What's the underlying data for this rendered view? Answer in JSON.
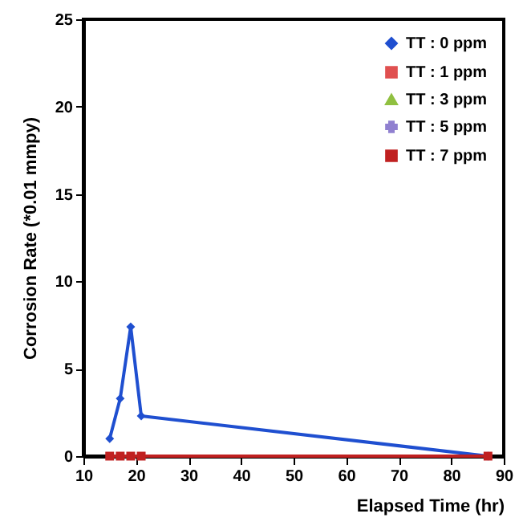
{
  "chart_data": {
    "type": "line",
    "xlabel": "Elapsed Time  (hr)",
    "ylabel": "Corrosion Rate (*0.01 mmpy)",
    "x": [
      15,
      17,
      19,
      21,
      87
    ],
    "series": [
      {
        "name": "TT : 0 ppm",
        "color": "#1f4fd0",
        "marker": "diamond",
        "values": [
          1.0,
          3.3,
          7.4,
          2.3,
          0
        ]
      },
      {
        "name": "TT : 1 ppm",
        "color": "#e05050",
        "marker": "square",
        "values": [
          null,
          null,
          null,
          null,
          null
        ]
      },
      {
        "name": "TT : 3 ppm",
        "color": "#90c040",
        "marker": "triangle",
        "values": [
          null,
          null,
          null,
          null,
          null
        ]
      },
      {
        "name": "TT : 5 ppm",
        "color": "#9080d0",
        "marker": "cross",
        "values": [
          null,
          null,
          null,
          null,
          null
        ]
      },
      {
        "name": "TT : 7 ppm",
        "color": "#c02020",
        "marker": "square",
        "values": [
          0,
          0,
          0,
          0,
          0
        ]
      }
    ],
    "xlim": [
      10,
      90
    ],
    "xticks": [
      10,
      20,
      30,
      40,
      50,
      60,
      70,
      80,
      90
    ],
    "ylim": [
      0,
      25
    ],
    "yticks": [
      0,
      5,
      10,
      15,
      20,
      25
    ],
    "grid": false,
    "legend": "top right",
    "line_style": "solid"
  }
}
